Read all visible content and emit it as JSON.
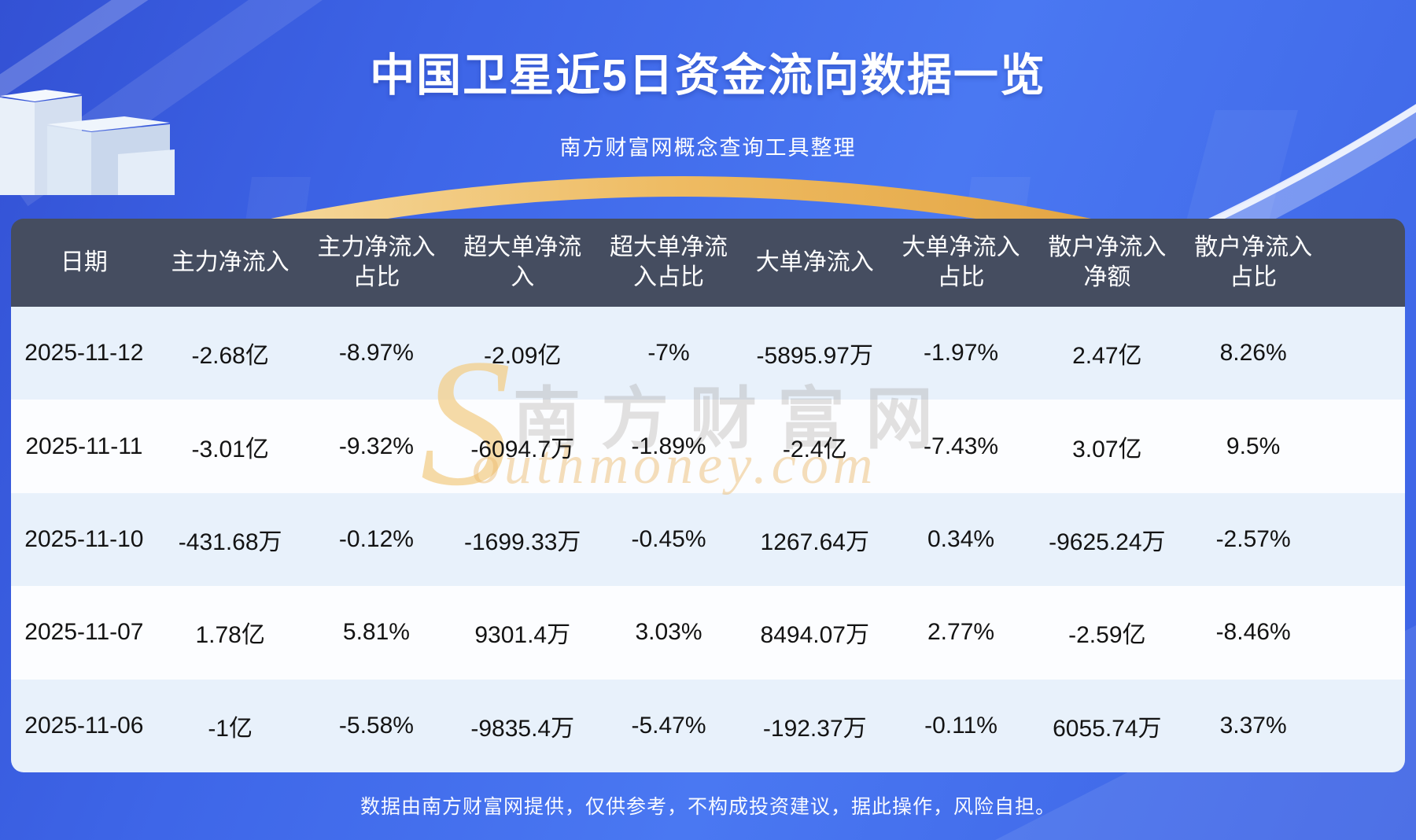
{
  "page": {
    "title": "中国卫星近5日资金流向数据一览",
    "subtitle": "南方财富网概念查询工具整理",
    "footer_disclaimer": "数据由南方财富网提供，仅供参考，不构成投资建议，据此操作，风险自担。"
  },
  "watermark": {
    "initial": "S",
    "cn_text": "南方财富网",
    "en_text": "outhmoney.com"
  },
  "chart_data": {
    "type": "table",
    "title": "中国卫星近5日资金流向数据一览",
    "columns": [
      "日期",
      "主力净流入",
      "主力净流入占比",
      "超大单净流入",
      "超大单净流入占比",
      "大单净流入",
      "大单净流入占比",
      "散户净流入净额",
      "散户净流入占比"
    ],
    "rows": [
      [
        "2025-11-12",
        "-2.68亿",
        "-8.97%",
        "-2.09亿",
        "-7%",
        "-5895.97万",
        "-1.97%",
        "2.47亿",
        "8.26%"
      ],
      [
        "2025-11-11",
        "-3.01亿",
        "-9.32%",
        "-6094.7万",
        "-1.89%",
        "-2.4亿",
        "-7.43%",
        "3.07亿",
        "9.5%"
      ],
      [
        "2025-11-10",
        "-431.68万",
        "-0.12%",
        "-1699.33万",
        "-0.45%",
        "1267.64万",
        "0.34%",
        "-9625.24万",
        "-2.57%"
      ],
      [
        "2025-11-07",
        "1.78亿",
        "5.81%",
        "9301.4万",
        "3.03%",
        "8494.07万",
        "2.77%",
        "-2.59亿",
        "-8.46%"
      ],
      [
        "2025-11-06",
        "-1亿",
        "-5.58%",
        "-9835.4万",
        "-5.47%",
        "-192.37万",
        "-0.11%",
        "6055.74万",
        "3.37%"
      ]
    ]
  },
  "colors": {
    "background_blue": "#3e66e8",
    "header_bg": "#454d60",
    "row_alt_bg": "#e8f1fb",
    "row_bg": "#fcfdff",
    "accent_gold": "#eebb62",
    "footer_text": "#ffffff",
    "cell_text": "#131313"
  }
}
